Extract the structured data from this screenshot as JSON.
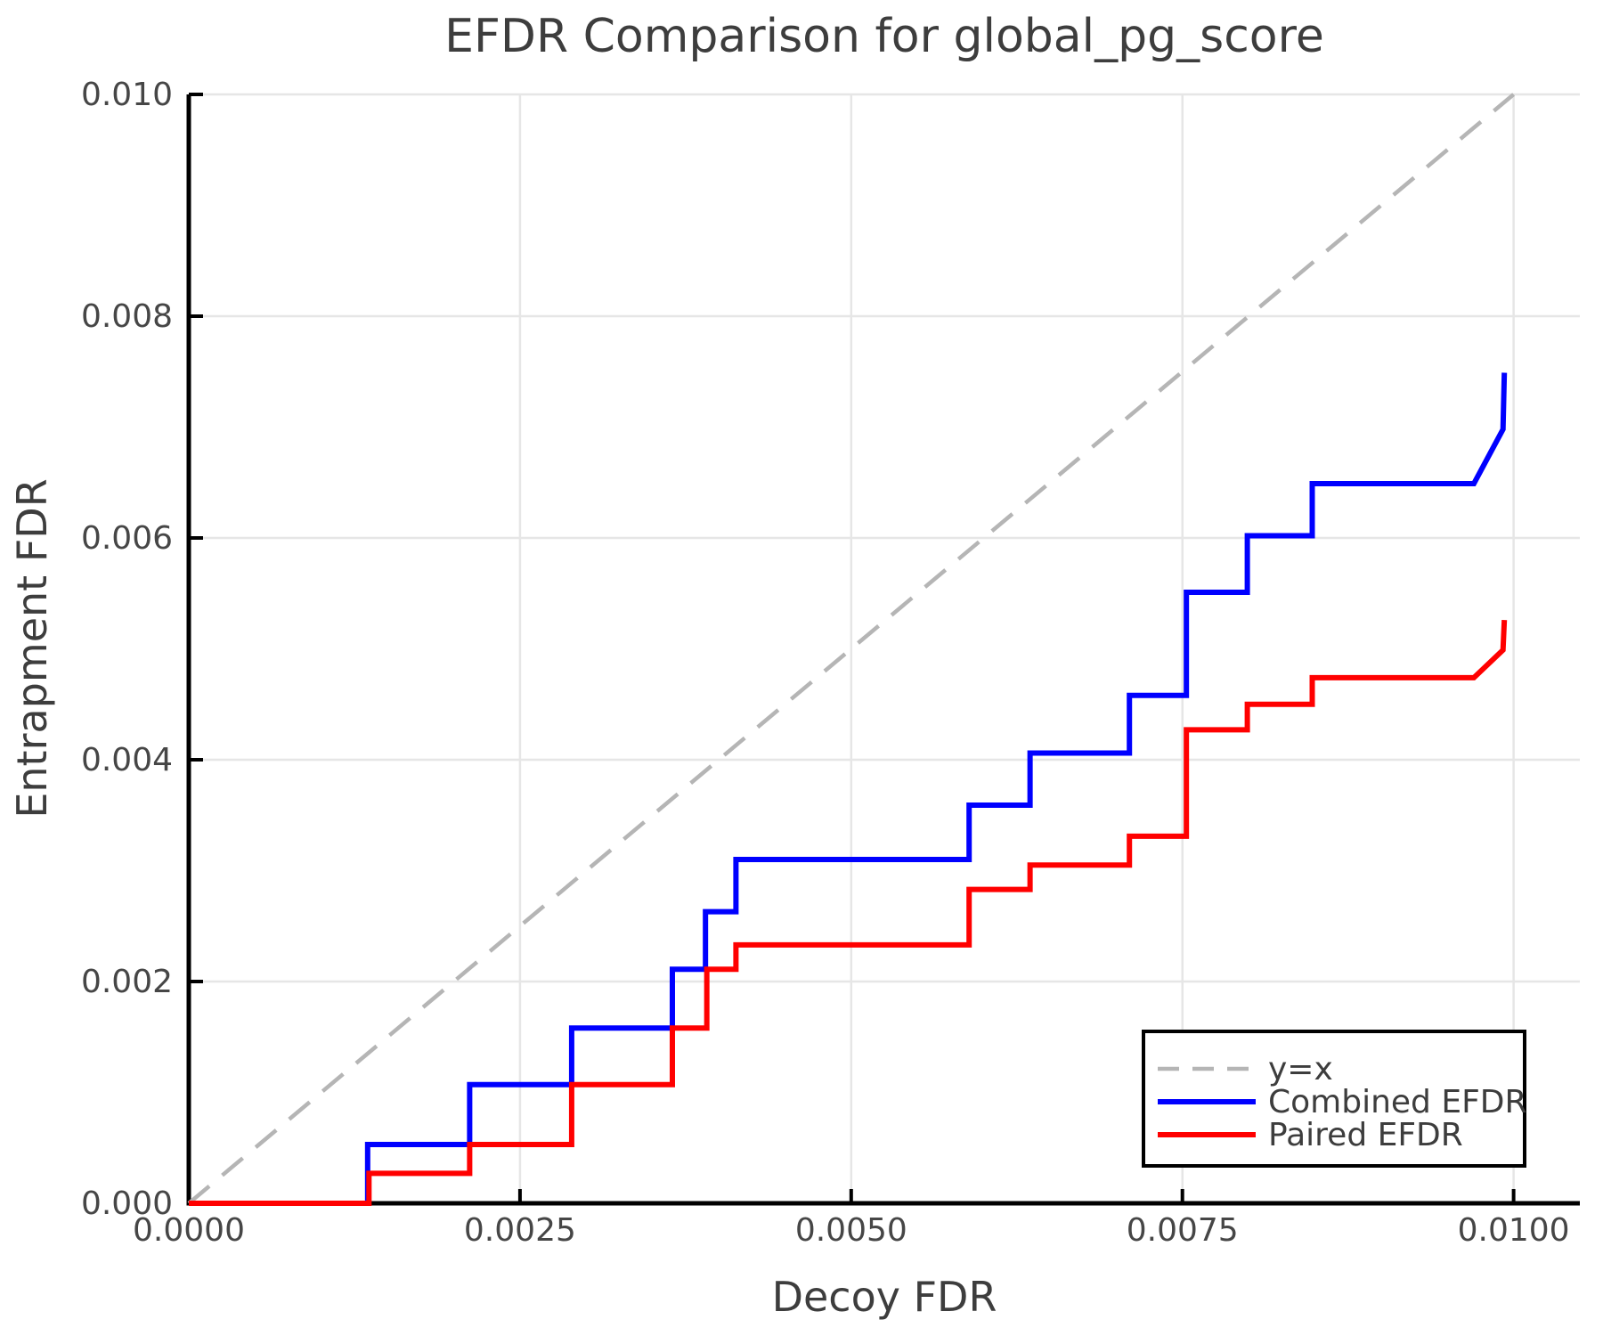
{
  "title": "EFDR Comparison for global_pg_score",
  "chart_data": {
    "type": "line",
    "title": "EFDR Comparison for global_pg_score",
    "xlabel": "Decoy FDR",
    "ylabel": "Entrapment FDR",
    "xlim": [
      0,
      0.0105
    ],
    "ylim": [
      0,
      0.01
    ],
    "grid": true,
    "grid_color": "#e6e6e6",
    "background": "#ffffff",
    "spine_color": "#000000",
    "text_color": "#3d3d3d",
    "legend_position": "lower right",
    "x_ticks": [
      0.0,
      0.0025,
      0.005,
      0.0075,
      0.01
    ],
    "x_tick_labels": [
      "0.0000",
      "0.0025",
      "0.0050",
      "0.0075",
      "0.0100"
    ],
    "y_ticks": [
      0.0,
      0.002,
      0.004,
      0.006,
      0.008,
      0.01
    ],
    "y_tick_labels": [
      "0.000",
      "0.002",
      "0.004",
      "0.006",
      "0.008",
      "0.010"
    ],
    "series": [
      {
        "name": "y=x",
        "style": "dashed",
        "color": "#b5b5b5",
        "width": 4.5,
        "dash": "30 19",
        "points": [
          [
            0,
            0
          ],
          [
            0.01,
            0.01
          ]
        ]
      },
      {
        "name": "Combined EFDR",
        "style": "solid",
        "color": "#0000ff",
        "width": 6,
        "dash": "",
        "points": [
          [
            0.0,
            0.0
          ],
          [
            0.00135,
            0.0
          ],
          [
            0.00135,
            0.00053
          ],
          [
            0.00212,
            0.00053
          ],
          [
            0.00212,
            0.00107
          ],
          [
            0.00289,
            0.00107
          ],
          [
            0.00289,
            0.00158
          ],
          [
            0.00365,
            0.00158
          ],
          [
            0.00365,
            0.00211
          ],
          [
            0.0039,
            0.00211
          ],
          [
            0.0039,
            0.00263
          ],
          [
            0.00413,
            0.00263
          ],
          [
            0.00413,
            0.0031
          ],
          [
            0.00589,
            0.0031
          ],
          [
            0.00589,
            0.00359
          ],
          [
            0.00635,
            0.00359
          ],
          [
            0.00635,
            0.00406
          ],
          [
            0.0071,
            0.00406
          ],
          [
            0.0071,
            0.00458
          ],
          [
            0.00753,
            0.00458
          ],
          [
            0.00753,
            0.00551
          ],
          [
            0.00799,
            0.00551
          ],
          [
            0.00799,
            0.00602
          ],
          [
            0.00848,
            0.00602
          ],
          [
            0.00848,
            0.00649
          ],
          [
            0.0097,
            0.00649
          ],
          [
            0.00992,
            0.00698
          ],
          [
            0.00993,
            0.00749
          ]
        ]
      },
      {
        "name": "Paired EFDR",
        "style": "solid",
        "color": "#ff0000",
        "width": 6,
        "dash": "",
        "points": [
          [
            0.0,
            0.0
          ],
          [
            0.00136,
            0.0
          ],
          [
            0.00136,
            0.00027
          ],
          [
            0.00212,
            0.00027
          ],
          [
            0.00212,
            0.00053
          ],
          [
            0.00289,
            0.00053
          ],
          [
            0.00289,
            0.00107
          ],
          [
            0.00365,
            0.00107
          ],
          [
            0.00365,
            0.00158
          ],
          [
            0.00391,
            0.00158
          ],
          [
            0.00391,
            0.00211
          ],
          [
            0.00413,
            0.00211
          ],
          [
            0.00413,
            0.00233
          ],
          [
            0.00589,
            0.00233
          ],
          [
            0.00589,
            0.00283
          ],
          [
            0.00635,
            0.00283
          ],
          [
            0.00635,
            0.00305
          ],
          [
            0.0071,
            0.00305
          ],
          [
            0.0071,
            0.00331
          ],
          [
            0.00753,
            0.00331
          ],
          [
            0.00753,
            0.00427
          ],
          [
            0.00799,
            0.00427
          ],
          [
            0.00799,
            0.0045
          ],
          [
            0.00848,
            0.0045
          ],
          [
            0.00848,
            0.00474
          ],
          [
            0.0097,
            0.00474
          ],
          [
            0.00992,
            0.00499
          ],
          [
            0.00993,
            0.00526
          ]
        ]
      }
    ]
  },
  "legend": {
    "items": [
      {
        "label": "y=x"
      },
      {
        "label": "Combined EFDR"
      },
      {
        "label": "Paired EFDR"
      }
    ]
  }
}
